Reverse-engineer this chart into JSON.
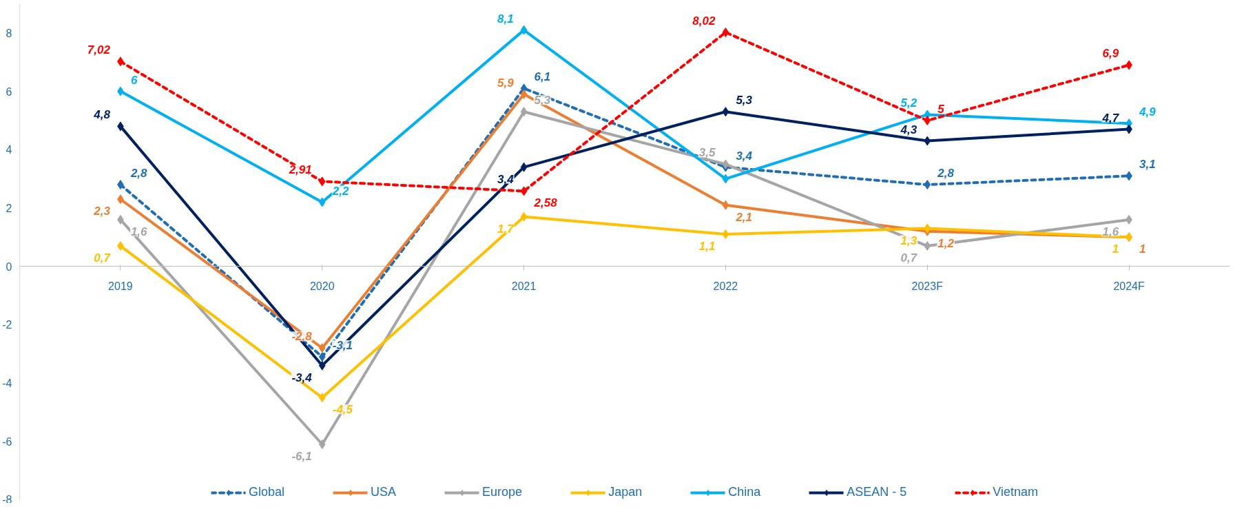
{
  "chart_data": {
    "type": "line",
    "categories": [
      "2019",
      "2020",
      "2021",
      "2022",
      "2023F",
      "2024F"
    ],
    "ylim": [
      -8,
      9
    ],
    "yticks": [
      -8,
      -6,
      -4,
      -2,
      0,
      2,
      4,
      6,
      8
    ],
    "grid": false,
    "legend": "bottom",
    "marker": "diamond",
    "series": [
      {
        "name": "Global",
        "color": "#1f6eb4",
        "line_style": "dashed",
        "values": [
          2.8,
          -3.1,
          6.1,
          3.4,
          2.8,
          3.1
        ],
        "value_labels": [
          "2,8",
          "-3,1",
          "6,1",
          "3,4",
          "2,8",
          "3,1"
        ]
      },
      {
        "name": "USA",
        "color": "#ed7d31",
        "values": [
          2.3,
          -2.8,
          5.9,
          2.1,
          1.2,
          1
        ],
        "value_labels": [
          "2,3",
          "-2,8",
          "5,9",
          "2,1",
          "1,2",
          "1"
        ]
      },
      {
        "name": "Europe",
        "color": "#a5a5a5",
        "values": [
          1.6,
          -6.1,
          5.3,
          3.5,
          0.7,
          1.6
        ],
        "value_labels": [
          "1,6",
          "-6,1",
          "5,3",
          "3,5",
          "0,7",
          "1,6"
        ]
      },
      {
        "name": "Japan",
        "color": "#ffc000",
        "values": [
          0.7,
          -4.5,
          1.7,
          1.1,
          1.3,
          1
        ],
        "value_labels": [
          "0,7",
          "-4,5",
          "1,7",
          "1,1",
          "1,3",
          "1"
        ]
      },
      {
        "name": "China",
        "color": "#00b0f0",
        "values": [
          6,
          2.2,
          8.1,
          3,
          5.2,
          4.9
        ],
        "value_labels": [
          "6",
          "2,2",
          "8,1",
          null,
          "5,2",
          "4,9"
        ]
      },
      {
        "name": "ASEAN - 5",
        "color": "#002060",
        "values": [
          4.8,
          -3.4,
          3.4,
          5.3,
          4.3,
          4.7
        ],
        "value_labels": [
          "4,8",
          "-3,4",
          "3,4",
          "5,3",
          "4,3",
          "4,7"
        ]
      },
      {
        "name": "Vietnam",
        "color": "#ff0000",
        "line_style": "dashed",
        "values": [
          7.02,
          2.91,
          2.58,
          8.02,
          5,
          6.9
        ],
        "value_labels": [
          "7,02",
          "2,91",
          "2,58",
          "8,02",
          "5",
          "6,9"
        ]
      }
    ]
  }
}
